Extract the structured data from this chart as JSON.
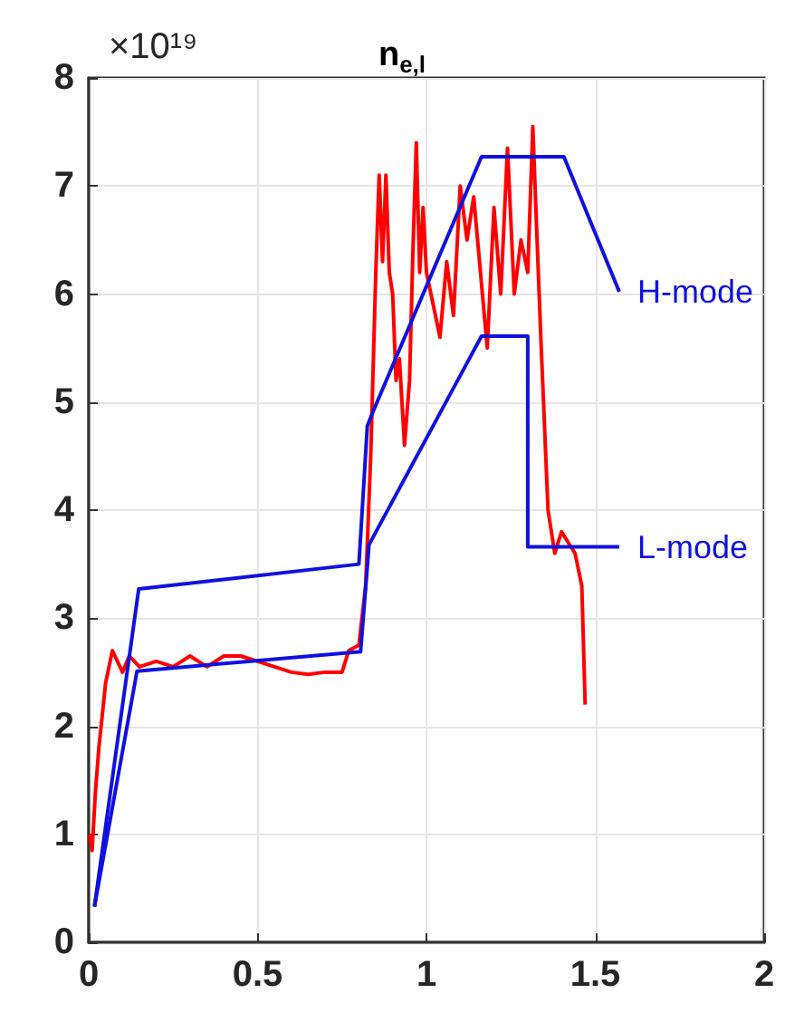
{
  "chart_data": {
    "type": "line",
    "title": "n$_{e,l}$",
    "annotations": [
      "×10¹⁹"
    ],
    "xlim": [
      0,
      2
    ],
    "xticks": [
      0,
      0.5,
      1,
      1.5,
      2
    ],
    "ylim": [
      0,
      8
    ],
    "yticks": [
      0,
      1,
      2,
      3,
      4,
      5,
      6,
      7,
      8
    ],
    "grid": true,
    "legend": false,
    "marker": "none",
    "line_style": "solid",
    "series": [
      {
        "color": "#ff0000",
        "x": [
          0.003,
          0.01,
          0.02,
          0.03,
          0.05,
          0.07,
          0.085,
          0.1,
          0.12,
          0.15,
          0.2,
          0.25,
          0.3,
          0.35,
          0.4,
          0.45,
          0.5,
          0.55,
          0.6,
          0.65,
          0.7,
          0.75,
          0.77,
          0.8,
          0.82,
          0.835,
          0.85,
          0.86,
          0.87,
          0.88,
          0.89,
          0.9,
          0.91,
          0.92,
          0.935,
          0.95,
          0.96,
          0.97,
          0.98,
          0.99,
          1.0,
          1.02,
          1.04,
          1.06,
          1.08,
          1.1,
          1.12,
          1.14,
          1.16,
          1.18,
          1.2,
          1.22,
          1.24,
          1.26,
          1.28,
          1.3,
          1.315,
          1.33,
          1.34,
          1.36,
          1.38,
          1.4,
          1.42,
          1.44,
          1.46,
          1.47
        ],
        "values": [
          1.0,
          0.85,
          1.4,
          1.8,
          2.4,
          2.7,
          2.6,
          2.5,
          2.65,
          2.55,
          2.6,
          2.55,
          2.65,
          2.55,
          2.65,
          2.65,
          2.6,
          2.55,
          2.5,
          2.48,
          2.5,
          2.5,
          2.7,
          2.75,
          3.3,
          4.5,
          6.2,
          7.1,
          6.3,
          7.1,
          6.2,
          6.0,
          5.2,
          5.4,
          4.6,
          5.2,
          6.4,
          7.4,
          6.2,
          6.8,
          6.2,
          5.9,
          5.6,
          6.3,
          5.8,
          7.0,
          6.5,
          6.9,
          6.2,
          5.5,
          6.8,
          6.0,
          7.35,
          6.0,
          6.5,
          6.2,
          7.55,
          6.3,
          5.5,
          4.0,
          3.6,
          3.8,
          3.7,
          3.6,
          3.3,
          2.2
        ]
      },
      {
        "name": "H-mode",
        "color": "#1010e0",
        "x": [
          0.017,
          0.148,
          0.8,
          0.825,
          0.843,
          1.163,
          1.407,
          1.571
        ],
        "values": [
          0.33,
          3.27,
          3.5,
          4.78,
          4.92,
          7.27,
          7.27,
          6.02
        ]
      },
      {
        "name": "L-mode",
        "color": "#1010e0",
        "x": [
          0.017,
          0.143,
          0.805,
          0.83,
          1.163,
          1.3,
          1.3,
          1.571
        ],
        "values": [
          0.33,
          2.51,
          2.69,
          3.68,
          5.61,
          5.61,
          3.66,
          3.66
        ]
      }
    ]
  }
}
